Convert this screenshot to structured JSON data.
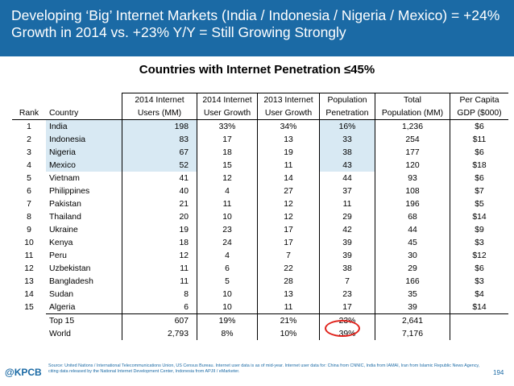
{
  "header": {
    "title": "Developing ‘Big’ Internet Markets (India / Indonesia / Nigeria / Mexico) = +24% Growth in 2014 vs. +23% Y/Y = Still Growing Strongly"
  },
  "subtitle": "Countries with Internet Penetration ≤45%",
  "table": {
    "header_top": [
      "",
      "",
      "2014 Internet",
      "2014 Internet",
      "2013 Internet",
      "Population",
      "Total",
      "Per Capita"
    ],
    "header_bottom": [
      "Rank",
      "Country",
      "Users (MM)",
      "User Growth",
      "User Growth",
      "Penetration",
      "Population (MM)",
      "GDP ($000)"
    ],
    "rows": [
      [
        "1",
        "India",
        "198",
        "33%",
        "34%",
        "16%",
        "1,236",
        "$6"
      ],
      [
        "2",
        "Indonesia",
        "83",
        "17",
        "13",
        "33",
        "254",
        "$11"
      ],
      [
        "3",
        "Nigeria",
        "67",
        "18",
        "19",
        "38",
        "177",
        "$6"
      ],
      [
        "4",
        "Mexico",
        "52",
        "15",
        "11",
        "43",
        "120",
        "$18"
      ],
      [
        "5",
        "Vietnam",
        "41",
        "12",
        "14",
        "44",
        "93",
        "$6"
      ],
      [
        "6",
        "Philippines",
        "40",
        "4",
        "27",
        "37",
        "108",
        "$7"
      ],
      [
        "7",
        "Pakistan",
        "21",
        "11",
        "12",
        "11",
        "196",
        "$5"
      ],
      [
        "8",
        "Thailand",
        "20",
        "10",
        "12",
        "29",
        "68",
        "$14"
      ],
      [
        "9",
        "Ukraine",
        "19",
        "23",
        "17",
        "42",
        "44",
        "$9"
      ],
      [
        "10",
        "Kenya",
        "18",
        "24",
        "17",
        "39",
        "45",
        "$3"
      ],
      [
        "11",
        "Peru",
        "12",
        "4",
        "7",
        "39",
        "30",
        "$12"
      ],
      [
        "12",
        "Uzbekistan",
        "11",
        "6",
        "22",
        "38",
        "29",
        "$6"
      ],
      [
        "13",
        "Bangladesh",
        "11",
        "5",
        "28",
        "7",
        "166",
        "$3"
      ],
      [
        "14",
        "Sudan",
        "8",
        "10",
        "13",
        "23",
        "35",
        "$4"
      ],
      [
        "15",
        "Algeria",
        "6",
        "10",
        "11",
        "17",
        "39",
        "$14"
      ]
    ],
    "totals": [
      [
        "",
        "Top 15",
        "607",
        "19%",
        "21%",
        "23%",
        "2,641",
        ""
      ],
      [
        "",
        "World",
        "2,793",
        "8%",
        "10%",
        "39%",
        "7,176",
        ""
      ]
    ]
  },
  "colors": {
    "header_bg": "#1b6aa5",
    "highlight": "#d8e9f3",
    "circle": "#e0221b"
  },
  "footer": {
    "logo": "@KPCB",
    "source": "Source: United Nations / International Telecommunications Union, US Census Bureau. Internet user data is as of mid-year. Internet user data for: China from CNNIC, India from IAMAI, Iran from Islamic Republic News Agency, citing data released by the National Internet Development Center, Indonesia from APJII / eMarketer.",
    "page": "194"
  }
}
